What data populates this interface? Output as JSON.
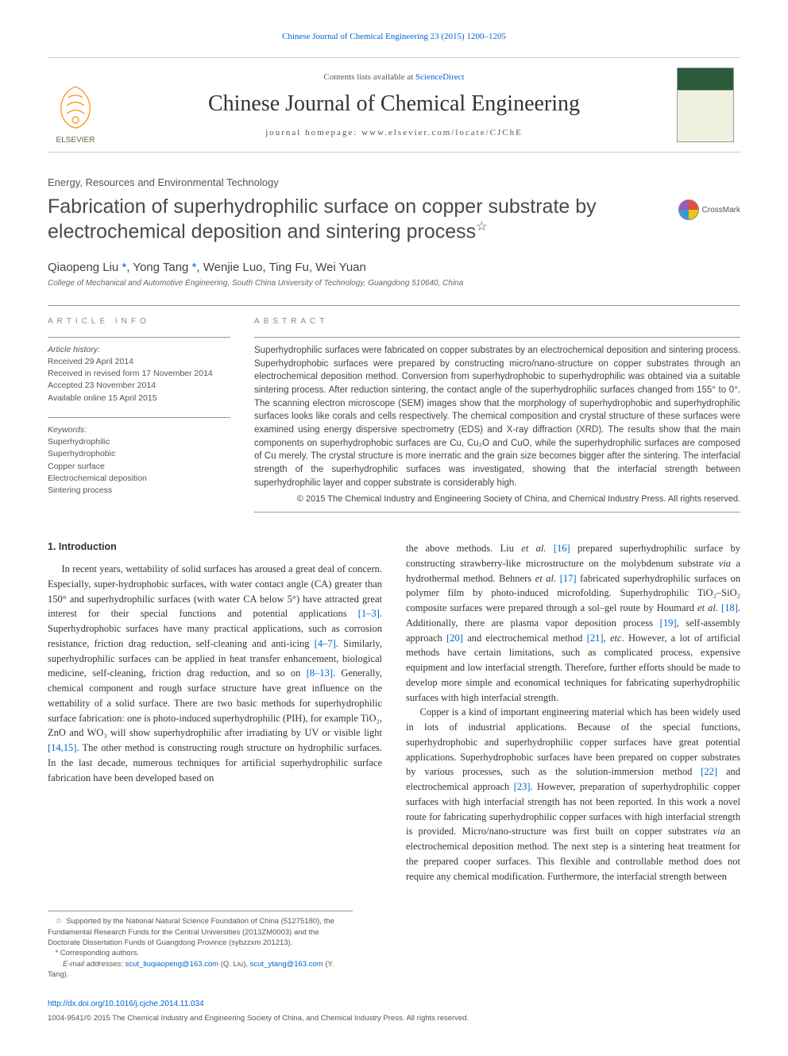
{
  "top_citation": "Chinese Journal of Chemical Engineering 23 (2015) 1200–1205",
  "masthead": {
    "contents_prefix": "Contents lists available at ",
    "contents_link": "ScienceDirect",
    "journal_name": "Chinese Journal of Chemical Engineering",
    "homepage_prefix": "journal homepage: ",
    "homepage_url": "www.elsevier.com/locate/CJChE"
  },
  "section_label": "Energy, Resources and Environmental Technology",
  "title": "Fabrication of superhydrophilic surface on copper substrate by electrochemical deposition and sintering process",
  "title_mark": "☆",
  "crossmark_label": "CrossMark",
  "authors_html": "Qiaopeng Liu <span class='ast'>*</span>, Yong Tang <span class='ast'>*</span>, Wenjie Luo, Ting Fu, Wei Yuan",
  "affiliation": "College of Mechanical and Automotive Engineering, South China University of Technology, Guangdong 510640, China",
  "article_info": {
    "heading": "ARTICLE INFO",
    "history_label": "Article history:",
    "history_lines": [
      "Received 29 April 2014",
      "Received in revised form 17 November 2014",
      "Accepted 23 November 2014",
      "Available online 15 April 2015"
    ],
    "keywords_label": "Keywords:",
    "keywords": [
      "Superhydrophilic",
      "Superhydrophobic",
      "Copper surface",
      "Electrochemical deposition",
      "Sintering process"
    ]
  },
  "abstract": {
    "heading": "ABSTRACT",
    "text": "Superhydrophilic surfaces were fabricated on copper substrates by an electrochemical deposition and sintering process. Superhydrophobic surfaces were prepared by constructing micro/nano-structure on copper substrates through an electrochemical deposition method. Conversion from superhydrophobic to superhydrophilic was obtained via a suitable sintering process. After reduction sintering, the contact angle of the superhydrophilic surfaces changed from 155° to 0°. The scanning electron microscope (SEM) images show that the morphology of superhydrophobic and superhydrophilic surfaces looks like corals and cells respectively. The chemical composition and crystal structure of these surfaces were examined using energy dispersive spectrometry (EDS) and X-ray diffraction (XRD). The results show that the main components on superhydrophobic surfaces are Cu, Cu₂O and CuO, while the superhydrophilic surfaces are composed of Cu merely. The crystal structure is more inerratic and the grain size becomes bigger after the sintering. The interfacial strength of the superhydrophilic surfaces was investigated, showing that the interfacial strength between superhydrophilic layer and copper substrate is considerably high.",
    "copyright": "© 2015 The Chemical Industry and Engineering Society of China, and Chemical Industry Press. All rights reserved."
  },
  "body": {
    "intro_heading": "1. Introduction",
    "col1_html": "In recent years, wettability of solid surfaces has aroused a great deal of concern. Especially, super-hydrophobic surfaces, with water contact angle (CA) greater than 150° and superhydrophilic surfaces (with water CA below 5°) have attracted great interest for their special functions and potential applications <a class='ref' data-name='citation-link' data-interactable='true'>[1–3]</a>. Superhydrophobic surfaces have many practical applications, such as corrosion resistance, friction drag reduction, self-cleaning and anti-icing <a class='ref' data-name='citation-link' data-interactable='true'>[4–7]</a>. Similarly, superhydrophilic surfaces can be applied in heat transfer enhancement, biological medicine, self-cleaning, friction drag reduction, and so on <a class='ref' data-name='citation-link' data-interactable='true'>[8–13]</a>. Generally, chemical component and rough surface structure have great influence on the wettability of a solid surface. There are two basic methods for superhydrophilic surface fabrication: one is photo-induced superhydrophilic (PIH), for example TiO₂, ZnO and WO₃ will show superhydrophilic after irradiating by UV or visible light <a class='ref' data-name='citation-link' data-interactable='true'>[14,15]</a>. The other method is constructing rough structure on hydrophilic surfaces. In the last decade, numerous techniques for artificial superhydrophilic surface fabrication have been developed based on",
    "col2_p1_html": "the above methods. Liu <i>et al.</i> <a class='ref' data-name='citation-link' data-interactable='true'>[16]</a> prepared superhydrophilic surface by constructing strawberry-like microstructure on the molybdenum substrate <i>via</i> a hydrothermal method. Behners <i>et al.</i> <a class='ref' data-name='citation-link' data-interactable='true'>[17]</a> fabricated superhydrophilic surfaces on polymer film by photo-induced microfolding. Superhydrophilic TiO₂–SiO₂ composite surfaces were prepared through a sol–gel route by Houmard <i>et al.</i> <a class='ref' data-name='citation-link' data-interactable='true'>[18]</a>. Additionally, there are plasma vapor deposition process <a class='ref' data-name='citation-link' data-interactable='true'>[19]</a>, self-assembly approach <a class='ref' data-name='citation-link' data-interactable='true'>[20]</a> and electrochemical method <a class='ref' data-name='citation-link' data-interactable='true'>[21]</a>, <i>etc</i>. However, a lot of artificial methods have certain limitations, such as complicated process, expensive equipment and low interfacial strength. Therefore, further efforts should be made to develop more simple and economical techniques for fabricating superhydrophilic surfaces with high interfacial strength.",
    "col2_p2_html": "Copper is a kind of important engineering material which has been widely used in lots of industrial applications. Because of the special functions, superhydrophobic and superhydrophilic copper surfaces have great potential applications. Superhydrophobic surfaces have been prepared on copper substrates by various processes, such as the solution-immersion method <a class='ref' data-name='citation-link' data-interactable='true'>[22]</a> and electrochemical approach <a class='ref' data-name='citation-link' data-interactable='true'>[23]</a>. However, preparation of superhydrophilic copper surfaces with high interfacial strength has not been reported. In this work a novel route for fabricating superhydrophilic copper surfaces with high interfacial strength is provided. Micro/nano-structure was first built on copper substrates <i>via</i> an electrochemical deposition method. The next step is a sintering heat treatment for the prepared cooper surfaces. This flexible and controllable method does not require any chemical modification. Furthermore, the interfacial strength between"
  },
  "footnotes": {
    "funding_mark": "☆",
    "funding": "Supported by the National Natural Science Foundation of China (51275180), the Fundamental Research Funds for the Central Universities (2013ZM0003) and the Doctorate Dissertation Funds of Guangdong Province (sybzzxm 201213).",
    "corresponding": "Corresponding authors.",
    "email_label": "E-mail addresses:",
    "email1": "scut_liuqiaopeng@163.com",
    "email1_who": " (Q. Liu), ",
    "email2": "scut_ytang@163.com",
    "email2_who": " (Y. Tang)."
  },
  "doi": {
    "url": "http://dx.doi.org/10.1016/j.cjche.2014.11.034",
    "line": "1004-9541/© 2015 The Chemical Industry and Engineering Society of China, and Chemical Industry Press. All rights reserved."
  },
  "colors": {
    "link": "#0066cc",
    "text": "#333333",
    "muted": "#555555",
    "rule": "#999999",
    "elsevier_orange": "#ff8a00",
    "elsevier_text": "#5a6e3f"
  }
}
